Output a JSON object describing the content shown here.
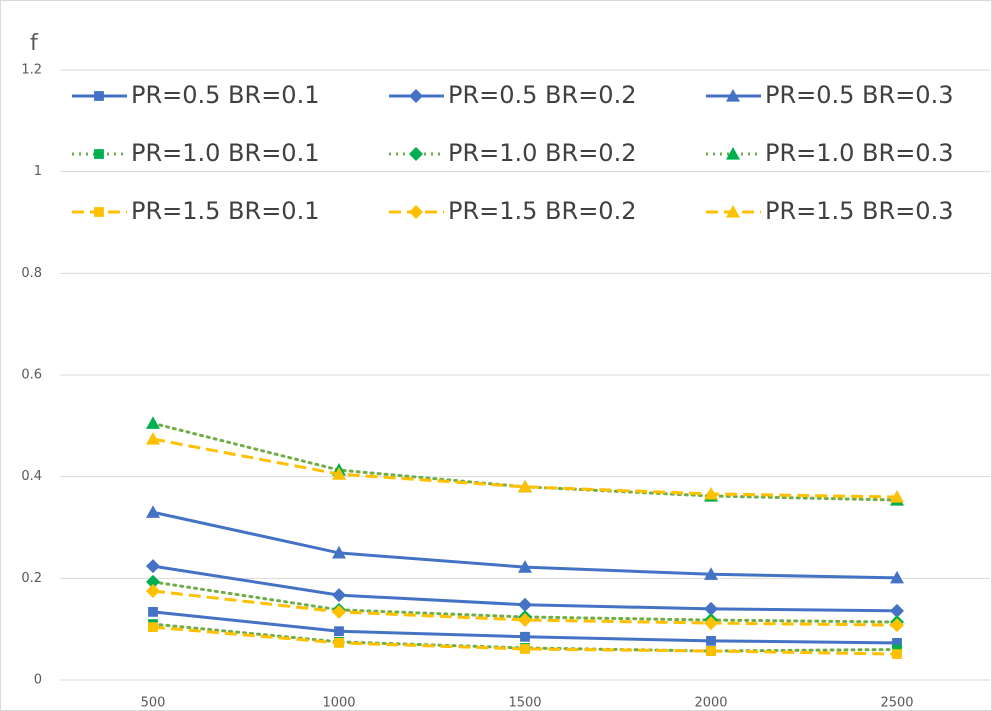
{
  "chart_data": {
    "type": "line",
    "y_label": "f",
    "categories": [
      500,
      1000,
      1500,
      2000,
      2500
    ],
    "ylim": [
      0,
      1.2
    ],
    "yticks": [
      0,
      0.2,
      0.4,
      0.6,
      0.8,
      1,
      1.2
    ],
    "grid": true,
    "legend": "top",
    "series": [
      {
        "name": "PR=0.5 BR=0.1",
        "color": "#4472c4",
        "dash": "solid",
        "marker": "square",
        "values": [
          0.134,
          0.096,
          0.085,
          0.077,
          0.073
        ]
      },
      {
        "name": "PR=0.5 BR=0.2",
        "color": "#4472c4",
        "dash": "solid",
        "marker": "diamond",
        "values": [
          0.224,
          0.167,
          0.148,
          0.14,
          0.136
        ]
      },
      {
        "name": "PR=0.5 BR=0.3",
        "color": "#4472c4",
        "dash": "solid",
        "marker": "triangle",
        "values": [
          0.33,
          0.25,
          0.222,
          0.208,
          0.201
        ]
      },
      {
        "name": "PR=1.0 BR=0.1",
        "color": "#70ad47",
        "dash": "dotted",
        "marker": "square",
        "values": [
          0.11,
          0.075,
          0.063,
          0.057,
          0.06
        ]
      },
      {
        "name": "PR=1.0 BR=0.2",
        "color": "#70ad47",
        "dash": "dotted",
        "marker": "diamond",
        "values": [
          0.193,
          0.138,
          0.124,
          0.118,
          0.114
        ]
      },
      {
        "name": "PR=1.0 BR=0.3",
        "color": "#70ad47",
        "dash": "dotted",
        "marker": "triangle",
        "values": [
          0.505,
          0.413,
          0.38,
          0.362,
          0.354
        ]
      },
      {
        "name": "PR=1.5 BR=0.1",
        "color": "#ffc000",
        "dash": "dashed",
        "marker": "square",
        "values": [
          0.104,
          0.073,
          0.061,
          0.057,
          0.051
        ]
      },
      {
        "name": "PR=1.5 BR=0.2",
        "color": "#ffc000",
        "dash": "dashed",
        "marker": "diamond",
        "values": [
          0.175,
          0.134,
          0.118,
          0.112,
          0.108
        ]
      },
      {
        "name": "PR=1.5 BR=0.3",
        "color": "#ffc000",
        "dash": "dashed",
        "marker": "triangle",
        "values": [
          0.474,
          0.405,
          0.38,
          0.366,
          0.36
        ]
      }
    ]
  }
}
